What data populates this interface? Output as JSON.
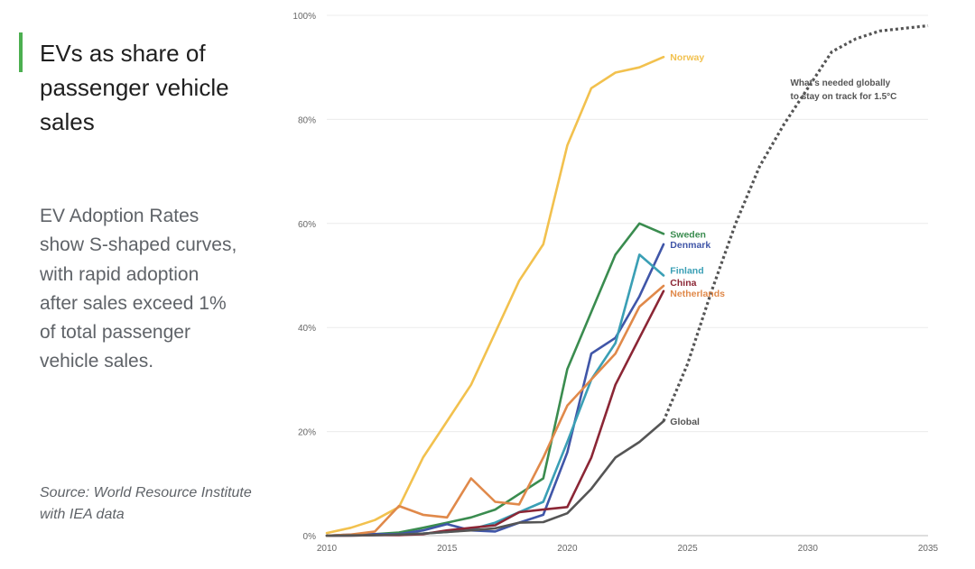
{
  "slide": {
    "title": "EVs as share of passenger vehicle sales",
    "body": "EV Adoption Rates show S-shaped curves, with rapid adoption after sales exceed 1% of total passenger vehicle sales.",
    "source": "Source: World Resource Institute with IEA data",
    "accent_color": "#4caf50"
  },
  "chart_data": {
    "type": "line",
    "title": "",
    "xlabel": "",
    "ylabel": "",
    "xlim": [
      2010,
      2035
    ],
    "ylim": [
      0,
      100
    ],
    "x_ticks": [
      "2010",
      "2015",
      "2020",
      "2025",
      "2030",
      "2035"
    ],
    "x_tick_values": [
      2010,
      2015,
      2020,
      2025,
      2030,
      2035
    ],
    "y_ticks": [
      "0%",
      "20%",
      "40%",
      "60%",
      "80%",
      "100%"
    ],
    "y_tick_values": [
      0,
      20,
      40,
      60,
      80,
      100
    ],
    "grid": true,
    "series": [
      {
        "name": "Norway",
        "color": "#f2c14e",
        "style": "solid",
        "x": [
          2010,
          2011,
          2012,
          2013,
          2014,
          2015,
          2016,
          2017,
          2018,
          2019,
          2020,
          2021,
          2022,
          2023,
          2024
        ],
        "y": [
          0.5,
          1.5,
          3,
          5.5,
          15,
          22,
          29,
          39,
          49,
          56,
          75,
          86,
          89,
          90,
          92
        ]
      },
      {
        "name": "Sweden",
        "color": "#3a8c4f",
        "style": "solid",
        "x": [
          2010,
          2011,
          2012,
          2013,
          2014,
          2015,
          2016,
          2017,
          2018,
          2019,
          2020,
          2021,
          2022,
          2023,
          2024
        ],
        "y": [
          0,
          0.1,
          0.3,
          0.6,
          1.5,
          2.5,
          3.5,
          5,
          8,
          11,
          32,
          43,
          54,
          60,
          58
        ]
      },
      {
        "name": "Denmark",
        "color": "#4056a8",
        "style": "solid",
        "x": [
          2010,
          2011,
          2012,
          2013,
          2014,
          2015,
          2016,
          2017,
          2018,
          2019,
          2020,
          2021,
          2022,
          2023,
          2024
        ],
        "y": [
          0,
          0.2,
          0.3,
          0.3,
          1,
          2.2,
          1,
          0.8,
          2.5,
          4,
          16,
          35,
          38,
          46,
          56
        ]
      },
      {
        "name": "Finland",
        "color": "#3a9fb5",
        "style": "solid",
        "x": [
          2010,
          2011,
          2012,
          2013,
          2014,
          2015,
          2016,
          2017,
          2018,
          2019,
          2020,
          2021,
          2022,
          2023,
          2024
        ],
        "y": [
          0,
          0,
          0.1,
          0.2,
          0.4,
          0.7,
          1.2,
          2.5,
          4.5,
          6.5,
          18,
          30,
          37,
          54,
          50
        ]
      },
      {
        "name": "China",
        "color": "#8b2635",
        "style": "solid",
        "x": [
          2010,
          2011,
          2012,
          2013,
          2014,
          2015,
          2016,
          2017,
          2018,
          2019,
          2020,
          2021,
          2022,
          2023,
          2024
        ],
        "y": [
          0,
          0,
          0.1,
          0.1,
          0.3,
          1,
          1.5,
          2,
          4.5,
          5,
          5.5,
          15,
          29,
          38,
          47
        ]
      },
      {
        "name": "Netherlands",
        "color": "#e0894a",
        "style": "solid",
        "x": [
          2010,
          2011,
          2012,
          2013,
          2014,
          2015,
          2016,
          2017,
          2018,
          2019,
          2020,
          2021,
          2022,
          2023,
          2024
        ],
        "y": [
          0,
          0.2,
          0.8,
          5.7,
          4,
          3.5,
          11,
          6.5,
          6,
          15,
          25,
          30,
          35,
          44,
          48
        ]
      },
      {
        "name": "Global",
        "color": "#555555",
        "style": "solid",
        "x": [
          2010,
          2011,
          2012,
          2013,
          2014,
          2015,
          2016,
          2017,
          2018,
          2019,
          2020,
          2021,
          2022,
          2023,
          2024
        ],
        "y": [
          0,
          0.05,
          0.1,
          0.2,
          0.4,
          0.7,
          1,
          1.4,
          2.5,
          2.6,
          4.3,
          9,
          15,
          18,
          22
        ]
      },
      {
        "name": "What's needed globally to stay on track for 1.5°C",
        "color": "#555555",
        "style": "dotted",
        "x": [
          2024,
          2025,
          2026,
          2027,
          2028,
          2029,
          2030,
          2031,
          2032,
          2033,
          2034,
          2035
        ],
        "y": [
          22,
          33,
          47,
          60,
          71,
          79,
          86,
          93,
          95.5,
          97,
          97.5,
          98
        ]
      }
    ],
    "annotation": {
      "lines": [
        "What's needed globally",
        "to stay on track for 1.5°C"
      ]
    },
    "series_labels": [
      {
        "text": "Norway",
        "series": "Norway",
        "year": 2024.2,
        "value": 92
      },
      {
        "text": "Sweden",
        "series": "Sweden",
        "year": 2024.2,
        "value": 58
      },
      {
        "text": "Denmark",
        "series": "Denmark",
        "year": 2024.2,
        "value": 56
      },
      {
        "text": "Finland",
        "series": "Finland",
        "year": 2024.2,
        "value": 51
      },
      {
        "text": "China",
        "series": "China",
        "year": 2024.2,
        "value": 48.7
      },
      {
        "text": "Netherlands",
        "series": "Netherlands",
        "year": 2024.2,
        "value": 46.6
      },
      {
        "text": "Global",
        "series": "Global",
        "year": 2024.2,
        "value": 22
      }
    ]
  }
}
